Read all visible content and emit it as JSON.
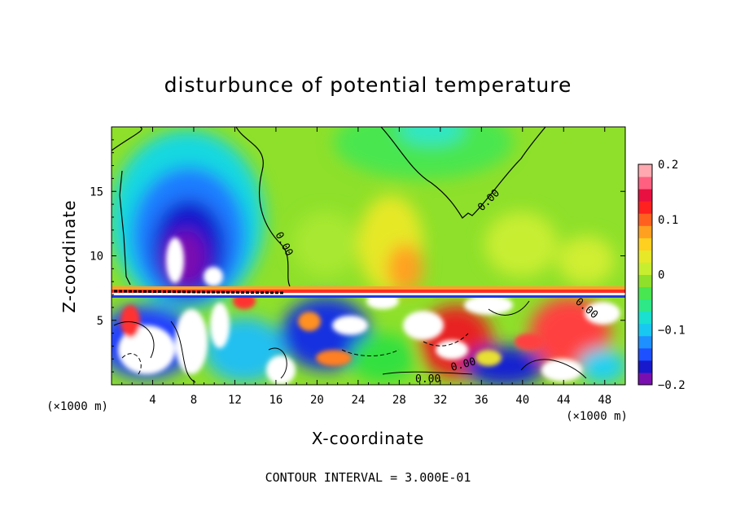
{
  "chart_data": {
    "type": "heatmap",
    "title": "disturbunce of potential temperature",
    "xlabel": "X-coordinate",
    "ylabel": "Z-coordinate",
    "x_unit": "(×1000 m)",
    "z_unit": "(×1000 m)",
    "xlim": [
      0,
      50
    ],
    "ylim": [
      0,
      20
    ],
    "x_ticks": [
      "4",
      "8",
      "12",
      "16",
      "20",
      "24",
      "28",
      "32",
      "36",
      "40",
      "44",
      "48"
    ],
    "y_ticks": [
      "5",
      "10",
      "15"
    ],
    "colorbar": {
      "range": [
        -0.2,
        0.2
      ],
      "tick_labels": [
        "0.2",
        "0.1",
        "0",
        "−0.1",
        "−0.2"
      ]
    },
    "contour_labels": [
      "0.00",
      "0.00",
      "0.00",
      "0.00",
      "0.00"
    ],
    "contour_interval_label": "CONTOUR INTERVAL = 3.000E-01",
    "features": [
      {
        "kind": "min",
        "x": 7,
        "z": 11,
        "value": -0.2
      },
      {
        "kind": "max",
        "x": 29,
        "z": 9,
        "value": 0.12
      },
      {
        "kind": "min",
        "x": 32,
        "z": 19.5,
        "value": -0.08
      }
    ]
  }
}
